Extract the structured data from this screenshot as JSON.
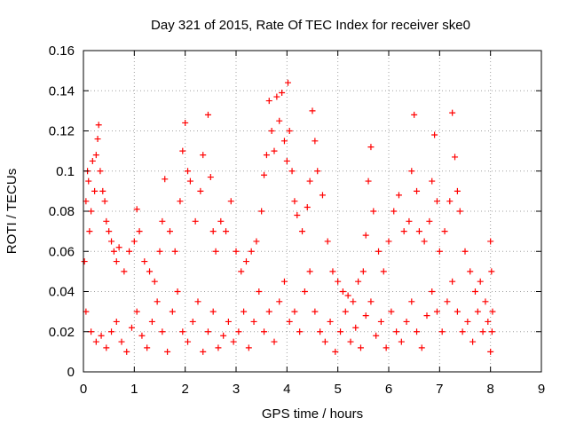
{
  "chart_data": {
    "type": "scatter",
    "title": "Day 321 of 2015, Rate Of TEC Index for receiver ske0",
    "xlabel": "GPS time / hours",
    "ylabel": "ROTI / TECUs",
    "xlim": [
      0,
      9
    ],
    "ylim": [
      0,
      0.16
    ],
    "x_ticks": [
      0,
      1,
      2,
      3,
      4,
      5,
      6,
      7,
      8,
      9
    ],
    "x_tick_labels": [
      "0",
      "1",
      "2",
      "3",
      "4",
      "5",
      "6",
      "7",
      "8",
      "9"
    ],
    "y_ticks": [
      0,
      0.02,
      0.04,
      0.06,
      0.08,
      0.1,
      0.12,
      0.14,
      0.16
    ],
    "y_tick_labels": [
      "0",
      "0.02",
      "0.04",
      "0.06",
      "0.08",
      "0.1",
      "0.12",
      "0.14",
      "0.16"
    ],
    "grid": true,
    "marker": "+",
    "color": "#ff0000",
    "series": [
      {
        "name": "ROTI",
        "points": [
          [
            0.02,
            0.055
          ],
          [
            0.05,
            0.085
          ],
          [
            0.08,
            0.1
          ],
          [
            0.1,
            0.095
          ],
          [
            0.12,
            0.07
          ],
          [
            0.15,
            0.08
          ],
          [
            0.18,
            0.105
          ],
          [
            0.22,
            0.09
          ],
          [
            0.25,
            0.108
          ],
          [
            0.28,
            0.116
          ],
          [
            0.3,
            0.123
          ],
          [
            0.33,
            0.1
          ],
          [
            0.38,
            0.09
          ],
          [
            0.42,
            0.085
          ],
          [
            0.45,
            0.075
          ],
          [
            0.5,
            0.07
          ],
          [
            0.55,
            0.065
          ],
          [
            0.6,
            0.06
          ],
          [
            0.65,
            0.055
          ],
          [
            0.7,
            0.062
          ],
          [
            0.8,
            0.05
          ],
          [
            0.9,
            0.06
          ],
          [
            1.0,
            0.065
          ],
          [
            1.05,
            0.081
          ],
          [
            1.1,
            0.07
          ],
          [
            1.2,
            0.055
          ],
          [
            1.3,
            0.05
          ],
          [
            1.4,
            0.045
          ],
          [
            1.5,
            0.06
          ],
          [
            1.55,
            0.075
          ],
          [
            1.6,
            0.096
          ],
          [
            1.7,
            0.07
          ],
          [
            1.8,
            0.06
          ],
          [
            1.9,
            0.085
          ],
          [
            1.95,
            0.11
          ],
          [
            2.0,
            0.124
          ],
          [
            2.05,
            0.1
          ],
          [
            2.1,
            0.095
          ],
          [
            2.2,
            0.075
          ],
          [
            2.3,
            0.09
          ],
          [
            2.35,
            0.108
          ],
          [
            2.45,
            0.128
          ],
          [
            2.5,
            0.097
          ],
          [
            2.55,
            0.07
          ],
          [
            2.6,
            0.06
          ],
          [
            2.7,
            0.075
          ],
          [
            2.8,
            0.07
          ],
          [
            2.9,
            0.085
          ],
          [
            3.0,
            0.06
          ],
          [
            3.1,
            0.05
          ],
          [
            3.2,
            0.055
          ],
          [
            3.3,
            0.06
          ],
          [
            3.4,
            0.065
          ],
          [
            3.5,
            0.08
          ],
          [
            3.55,
            0.098
          ],
          [
            3.6,
            0.108
          ],
          [
            3.65,
            0.135
          ],
          [
            3.7,
            0.12
          ],
          [
            3.75,
            0.11
          ],
          [
            3.8,
            0.137
          ],
          [
            3.85,
            0.125
          ],
          [
            3.9,
            0.139
          ],
          [
            3.95,
            0.115
          ],
          [
            4.0,
            0.105
          ],
          [
            4.02,
            0.144
          ],
          [
            4.05,
            0.12
          ],
          [
            4.1,
            0.1
          ],
          [
            4.15,
            0.085
          ],
          [
            4.2,
            0.078
          ],
          [
            4.3,
            0.07
          ],
          [
            4.4,
            0.082
          ],
          [
            4.45,
            0.095
          ],
          [
            4.5,
            0.13
          ],
          [
            4.55,
            0.115
          ],
          [
            4.6,
            0.1
          ],
          [
            4.7,
            0.088
          ],
          [
            4.8,
            0.065
          ],
          [
            4.9,
            0.05
          ],
          [
            5.0,
            0.045
          ],
          [
            5.1,
            0.04
          ],
          [
            5.2,
            0.038
          ],
          [
            5.3,
            0.035
          ],
          [
            5.4,
            0.045
          ],
          [
            5.5,
            0.05
          ],
          [
            5.55,
            0.068
          ],
          [
            5.6,
            0.095
          ],
          [
            5.65,
            0.112
          ],
          [
            5.7,
            0.08
          ],
          [
            5.8,
            0.06
          ],
          [
            5.9,
            0.05
          ],
          [
            6.0,
            0.065
          ],
          [
            6.1,
            0.08
          ],
          [
            6.2,
            0.088
          ],
          [
            6.3,
            0.07
          ],
          [
            6.4,
            0.075
          ],
          [
            6.45,
            0.1
          ],
          [
            6.5,
            0.128
          ],
          [
            6.55,
            0.09
          ],
          [
            6.6,
            0.07
          ],
          [
            6.7,
            0.065
          ],
          [
            6.8,
            0.075
          ],
          [
            6.85,
            0.095
          ],
          [
            6.9,
            0.118
          ],
          [
            6.95,
            0.085
          ],
          [
            7.0,
            0.06
          ],
          [
            7.1,
            0.07
          ],
          [
            7.2,
            0.085
          ],
          [
            7.25,
            0.129
          ],
          [
            7.3,
            0.107
          ],
          [
            7.35,
            0.09
          ],
          [
            7.4,
            0.08
          ],
          [
            7.5,
            0.06
          ],
          [
            7.6,
            0.05
          ],
          [
            7.7,
            0.04
          ],
          [
            7.8,
            0.045
          ],
          [
            7.9,
            0.035
          ],
          [
            8.0,
            0.065
          ],
          [
            8.02,
            0.05
          ],
          [
            8.04,
            0.03
          ],
          [
            0.05,
            0.03
          ],
          [
            0.15,
            0.02
          ],
          [
            0.25,
            0.015
          ],
          [
            0.35,
            0.018
          ],
          [
            0.45,
            0.012
          ],
          [
            0.55,
            0.02
          ],
          [
            0.65,
            0.025
          ],
          [
            0.75,
            0.015
          ],
          [
            0.85,
            0.01
          ],
          [
            0.95,
            0.022
          ],
          [
            1.05,
            0.03
          ],
          [
            1.15,
            0.018
          ],
          [
            1.25,
            0.012
          ],
          [
            1.35,
            0.025
          ],
          [
            1.45,
            0.035
          ],
          [
            1.55,
            0.02
          ],
          [
            1.65,
            0.01
          ],
          [
            1.75,
            0.03
          ],
          [
            1.85,
            0.04
          ],
          [
            1.95,
            0.02
          ],
          [
            2.05,
            0.015
          ],
          [
            2.15,
            0.025
          ],
          [
            2.25,
            0.035
          ],
          [
            2.35,
            0.01
          ],
          [
            2.45,
            0.02
          ],
          [
            2.55,
            0.03
          ],
          [
            2.65,
            0.012
          ],
          [
            2.75,
            0.018
          ],
          [
            2.85,
            0.025
          ],
          [
            2.95,
            0.015
          ],
          [
            3.05,
            0.02
          ],
          [
            3.15,
            0.03
          ],
          [
            3.25,
            0.012
          ],
          [
            3.35,
            0.025
          ],
          [
            3.45,
            0.04
          ],
          [
            3.55,
            0.02
          ],
          [
            3.65,
            0.03
          ],
          [
            3.75,
            0.015
          ],
          [
            3.85,
            0.035
          ],
          [
            3.95,
            0.045
          ],
          [
            4.05,
            0.025
          ],
          [
            4.15,
            0.03
          ],
          [
            4.25,
            0.02
          ],
          [
            4.35,
            0.04
          ],
          [
            4.45,
            0.05
          ],
          [
            4.55,
            0.03
          ],
          [
            4.65,
            0.02
          ],
          [
            4.75,
            0.015
          ],
          [
            4.85,
            0.025
          ],
          [
            4.95,
            0.01
          ],
          [
            5.05,
            0.02
          ],
          [
            5.15,
            0.03
          ],
          [
            5.25,
            0.015
          ],
          [
            5.35,
            0.022
          ],
          [
            5.45,
            0.012
          ],
          [
            5.55,
            0.028
          ],
          [
            5.65,
            0.035
          ],
          [
            5.75,
            0.018
          ],
          [
            5.85,
            0.025
          ],
          [
            5.95,
            0.012
          ],
          [
            6.05,
            0.03
          ],
          [
            6.15,
            0.02
          ],
          [
            6.25,
            0.015
          ],
          [
            6.35,
            0.025
          ],
          [
            6.45,
            0.035
          ],
          [
            6.55,
            0.02
          ],
          [
            6.65,
            0.012
          ],
          [
            6.75,
            0.028
          ],
          [
            6.85,
            0.04
          ],
          [
            6.95,
            0.03
          ],
          [
            7.05,
            0.02
          ],
          [
            7.15,
            0.035
          ],
          [
            7.25,
            0.045
          ],
          [
            7.35,
            0.03
          ],
          [
            7.45,
            0.02
          ],
          [
            7.55,
            0.025
          ],
          [
            7.65,
            0.015
          ],
          [
            7.75,
            0.03
          ],
          [
            7.85,
            0.02
          ],
          [
            7.95,
            0.025
          ],
          [
            8.0,
            0.01
          ],
          [
            8.03,
            0.02
          ]
        ]
      }
    ]
  }
}
